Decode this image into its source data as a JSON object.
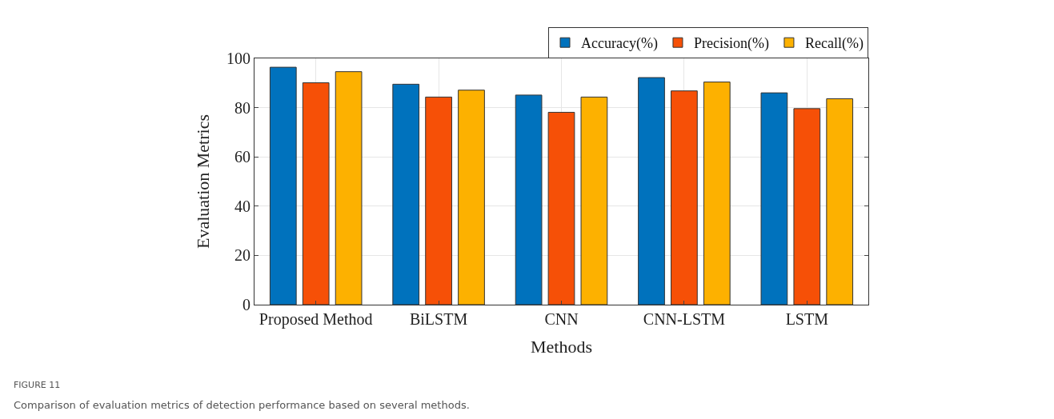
{
  "chart_data": {
    "type": "bar",
    "categories": [
      "Proposed Method",
      "BiLSTM",
      "CNN",
      "CNN-LSTM",
      "LSTM"
    ],
    "series": [
      {
        "name": "Accuracy(%)",
        "color": "#0072bd",
        "values": [
          96.4,
          89.5,
          85.1,
          92.2,
          86.0
        ]
      },
      {
        "name": "Precision(%)",
        "color": "#f65007",
        "values": [
          90.1,
          84.3,
          78.1,
          86.8,
          79.6
        ]
      },
      {
        "name": "Recall(%)",
        "color": "#fdb100",
        "values": [
          94.6,
          87.1,
          84.3,
          90.4,
          83.6
        ]
      }
    ],
    "xlabel": "Methods",
    "ylabel": "Evaluation Metrics",
    "ylim": [
      0,
      100
    ],
    "yticks": [
      0,
      20,
      40,
      60,
      80,
      100
    ],
    "grid": true,
    "legend": "top right",
    "annotations": [
      "FIGURE 11",
      "Comparison of evaluation metrics of detection performance based on several methods."
    ]
  }
}
